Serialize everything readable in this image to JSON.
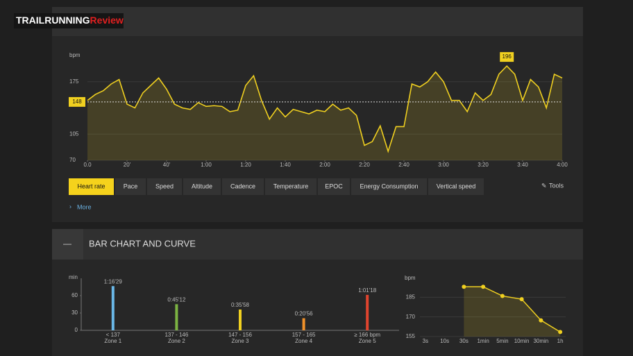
{
  "logo": {
    "brand": "TRAILRUNNING",
    "accent": "Review"
  },
  "tabs": [
    "Heart rate",
    "Pace",
    "Speed",
    "Altitude",
    "Cadence",
    "Temperature",
    "EPOC",
    "Energy Consumption",
    "Vertical speed"
  ],
  "tools": "Tools",
  "more": "More",
  "section": {
    "toggle": "—",
    "title": "BAR CHART AND CURVE"
  },
  "chart_data": [
    {
      "type": "line",
      "y_label": "bpm",
      "color": "#f0d020",
      "x": [
        0,
        4,
        8,
        12,
        16,
        20,
        24,
        28,
        32,
        36,
        40,
        44,
        48,
        52,
        56,
        60,
        64,
        68,
        72,
        76,
        80,
        84,
        88,
        92,
        96,
        100,
        104,
        108,
        112,
        116,
        120,
        124,
        128,
        132,
        136,
        140,
        144,
        148,
        152,
        156,
        160,
        164,
        168,
        172,
        176,
        180,
        184,
        188,
        192,
        196,
        200,
        204,
        208,
        212,
        216,
        220,
        224,
        228,
        232,
        236,
        240
      ],
      "series": [
        {
          "name": "Heart rate",
          "color": "#f0d020",
          "values": [
            150,
            158,
            163,
            172,
            178,
            145,
            140,
            160,
            170,
            180,
            165,
            145,
            140,
            138,
            147,
            142,
            143,
            142,
            135,
            137,
            170,
            183,
            150,
            125,
            140,
            128,
            138,
            135,
            132,
            137,
            135,
            145,
            137,
            140,
            130,
            90,
            95,
            116,
            82,
            115,
            115,
            172,
            168,
            175,
            188,
            175,
            150,
            150,
            135,
            160,
            150,
            158,
            185,
            196,
            185,
            150,
            178,
            168,
            140,
            185,
            180
          ]
        }
      ],
      "xlim": [
        0,
        240
      ],
      "ylim": [
        70,
        210
      ],
      "xticks": [
        {
          "value": 0,
          "label": "0.0"
        },
        {
          "value": 20,
          "label": "20'"
        },
        {
          "value": 40,
          "label": "40'"
        },
        {
          "value": 60,
          "label": "1:00"
        },
        {
          "value": 80,
          "label": "1:20"
        },
        {
          "value": 100,
          "label": "1:40"
        },
        {
          "value": 120,
          "label": "2:00"
        },
        {
          "value": 140,
          "label": "2:20"
        },
        {
          "value": 160,
          "label": "2:40"
        },
        {
          "value": 180,
          "label": "3:00"
        },
        {
          "value": 200,
          "label": "3:20"
        },
        {
          "value": 220,
          "label": "3:40"
        },
        {
          "value": 240,
          "label": "4:00"
        }
      ],
      "yticks": [
        70,
        105,
        175
      ],
      "grid": true,
      "average": 148,
      "max": {
        "x": 212,
        "value": 196
      }
    },
    {
      "type": "bar",
      "y_label": "min",
      "categories": [
        "< 137",
        "137 - 146",
        "147 - 156",
        "157 - 165",
        "≥ 166 bpm"
      ],
      "zones": [
        "Zone 1",
        "Zone 2",
        "Zone 3",
        "Zone 4",
        "Zone 5"
      ],
      "values": [
        76.48,
        45.2,
        35.97,
        20.93,
        61.3
      ],
      "value_labels": [
        "1:16'29",
        "0:45'12",
        "0:35'58",
        "0:20'56",
        "1:01'18"
      ],
      "colors": [
        "#6ab8e8",
        "#7cb342",
        "#f0d020",
        "#f0912a",
        "#e0442e"
      ],
      "ylim": [
        0,
        90
      ],
      "yticks": [
        0,
        30,
        60
      ]
    },
    {
      "type": "line",
      "y_label": "bpm",
      "color": "#f0d020",
      "categories": [
        "3s",
        "10s",
        "30s",
        "1min",
        "5min",
        "10min",
        "30min",
        "1h"
      ],
      "values": [
        null,
        null,
        193,
        193,
        186,
        183.5,
        167.4,
        158.5
      ],
      "ylim": [
        155,
        200
      ],
      "yticks": [
        155,
        170,
        185
      ],
      "grid": true
    }
  ]
}
